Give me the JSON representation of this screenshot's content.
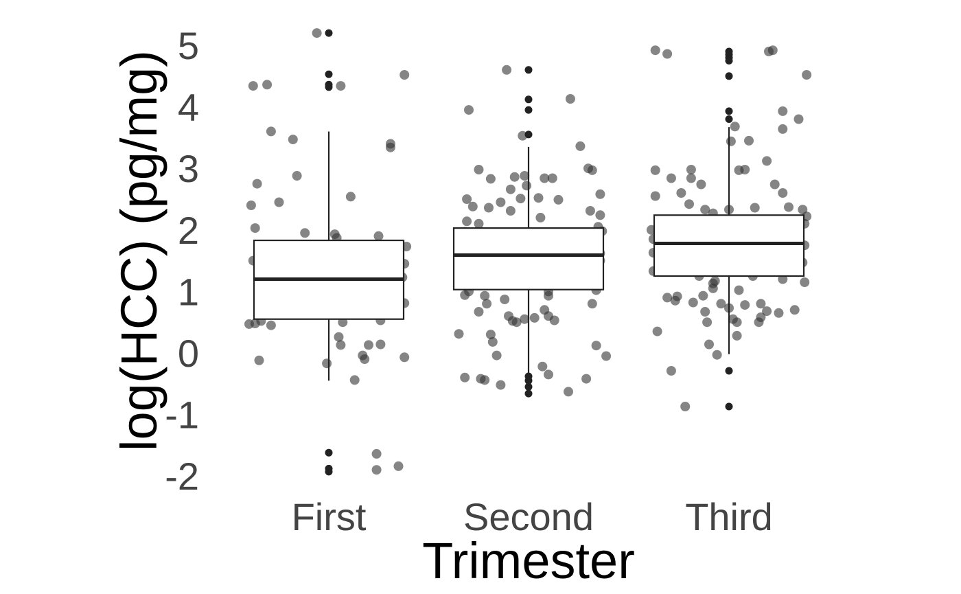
{
  "chart_data": {
    "type": "boxplot",
    "xlabel": "Trimester",
    "ylabel": "log(HCC) (pg/mg)",
    "categories": [
      "First",
      "Second",
      "Third"
    ],
    "yticks": [
      {
        "value": 5,
        "label": "5"
      },
      {
        "value": 4,
        "label": "4"
      },
      {
        "value": 3,
        "label": "3"
      },
      {
        "value": 2,
        "label": "2"
      },
      {
        "value": 1,
        "label": "1"
      },
      {
        "value": 0,
        "label": "0"
      },
      {
        "value": -1,
        "label": "-1"
      },
      {
        "value": -2,
        "label": "-2"
      }
    ],
    "ylim": [
      -2.3,
      5.35
    ],
    "grid": false,
    "colors": {
      "box_line": "#222222",
      "point": "#333333",
      "outlier": "#222222",
      "tick_text": "#444444",
      "title_text": "#000000"
    },
    "boxes": [
      {
        "category": "First",
        "q1": 0.55,
        "median": 1.2,
        "q3": 1.83,
        "whisker_low": -0.45,
        "whisker_high": 3.6,
        "outliers": [
          5.2,
          4.53,
          4.36,
          4.32,
          -1.62,
          -1.88,
          -1.93
        ]
      },
      {
        "category": "Second",
        "q1": 1.03,
        "median": 1.59,
        "q3": 2.03,
        "whisker_low": -0.4,
        "whisker_high": 3.35,
        "outliers": [
          4.6,
          4.12,
          3.95,
          3.55,
          -0.38,
          -0.45,
          -0.55,
          -0.66
        ]
      },
      {
        "category": "Third",
        "q1": 1.25,
        "median": 1.78,
        "q3": 2.24,
        "whisker_low": -0.02,
        "whisker_high": 3.67,
        "outliers": [
          4.9,
          4.85,
          4.8,
          4.75,
          4.5,
          3.93,
          3.8,
          -0.29,
          -0.87
        ]
      }
    ],
    "jitter_points": [
      {
        "category": "First",
        "x": -0.06,
        "y": 5.2
      },
      {
        "category": "First",
        "x": -0.38,
        "y": 4.34
      },
      {
        "category": "First",
        "x": -0.31,
        "y": 4.36
      },
      {
        "category": "First",
        "x": 0.06,
        "y": 4.34
      },
      {
        "category": "First",
        "x": 0.38,
        "y": 4.52
      },
      {
        "category": "First",
        "x": -0.29,
        "y": 3.6
      },
      {
        "category": "First",
        "x": -0.18,
        "y": 3.47
      },
      {
        "category": "First",
        "x": 0.31,
        "y": 3.4
      },
      {
        "category": "First",
        "x": 0.31,
        "y": 3.34
      },
      {
        "category": "First",
        "x": -0.36,
        "y": 2.75
      },
      {
        "category": "First",
        "x": -0.16,
        "y": 2.88
      },
      {
        "category": "First",
        "x": 0.11,
        "y": 2.54
      },
      {
        "category": "First",
        "x": -0.39,
        "y": 2.4
      },
      {
        "category": "First",
        "x": -0.25,
        "y": 2.45
      },
      {
        "category": "First",
        "x": -0.37,
        "y": 2.03
      },
      {
        "category": "First",
        "x": -0.12,
        "y": 1.95
      },
      {
        "category": "First",
        "x": 0.03,
        "y": 1.93
      },
      {
        "category": "First",
        "x": 0.04,
        "y": 1.87
      },
      {
        "category": "First",
        "x": 0.25,
        "y": 1.9
      },
      {
        "category": "First",
        "x": 0.39,
        "y": 1.73
      },
      {
        "category": "First",
        "x": -0.38,
        "y": 1.5
      },
      {
        "category": "First",
        "x": 0.38,
        "y": 1.45
      },
      {
        "category": "First",
        "x": 0.37,
        "y": 1.23
      },
      {
        "category": "First",
        "x": 0.38,
        "y": 0.81
      },
      {
        "category": "First",
        "x": -0.08,
        "y": 0.63
      },
      {
        "category": "First",
        "x": -0.4,
        "y": 0.47
      },
      {
        "category": "First",
        "x": -0.37,
        "y": 0.48
      },
      {
        "category": "First",
        "x": -0.34,
        "y": 0.52
      },
      {
        "category": "First",
        "x": -0.29,
        "y": 0.45
      },
      {
        "category": "First",
        "x": 0.07,
        "y": 0.5
      },
      {
        "category": "First",
        "x": 0.26,
        "y": 0.53
      },
      {
        "category": "First",
        "x": 0.05,
        "y": 0.26
      },
      {
        "category": "First",
        "x": 0.06,
        "y": 0.13
      },
      {
        "category": "First",
        "x": 0.2,
        "y": 0.13
      },
      {
        "category": "First",
        "x": 0.26,
        "y": 0.14
      },
      {
        "category": "First",
        "x": -0.35,
        "y": -0.12
      },
      {
        "category": "First",
        "x": -0.01,
        "y": -0.17
      },
      {
        "category": "First",
        "x": 0.18,
        "y": -0.1
      },
      {
        "category": "First",
        "x": 0.17,
        "y": -0.04
      },
      {
        "category": "First",
        "x": 0.38,
        "y": -0.07
      },
      {
        "category": "First",
        "x": 0.13,
        "y": -0.44
      },
      {
        "category": "First",
        "x": 0.24,
        "y": -1.64
      },
      {
        "category": "First",
        "x": 0.24,
        "y": -1.9
      },
      {
        "category": "First",
        "x": 0.35,
        "y": -1.84
      },
      {
        "category": "Second",
        "x": -0.11,
        "y": 4.6
      },
      {
        "category": "Second",
        "x": -0.3,
        "y": 3.95
      },
      {
        "category": "Second",
        "x": 0.21,
        "y": 4.13
      },
      {
        "category": "Second",
        "x": 0.12,
        "y": 2.84
      },
      {
        "category": "Second",
        "x": -0.03,
        "y": 3.53
      },
      {
        "category": "Second",
        "x": 0.26,
        "y": 3.36
      },
      {
        "category": "Second",
        "x": 0.3,
        "y": 3.0
      },
      {
        "category": "Second",
        "x": 0.32,
        "y": 2.97
      },
      {
        "category": "Second",
        "x": -0.25,
        "y": 2.98
      },
      {
        "category": "Second",
        "x": -0.19,
        "y": 2.83
      },
      {
        "category": "Second",
        "x": -0.07,
        "y": 2.86
      },
      {
        "category": "Second",
        "x": -0.02,
        "y": 2.88
      },
      {
        "category": "Second",
        "x": 0.08,
        "y": 2.84
      },
      {
        "category": "Second",
        "x": 0.36,
        "y": 2.58
      },
      {
        "category": "Second",
        "x": -0.31,
        "y": 2.5
      },
      {
        "category": "Second",
        "x": -0.28,
        "y": 2.38
      },
      {
        "category": "Second",
        "x": -0.2,
        "y": 2.36
      },
      {
        "category": "Second",
        "x": -0.14,
        "y": 2.45
      },
      {
        "category": "Second",
        "x": -0.09,
        "y": 2.66
      },
      {
        "category": "Second",
        "x": -0.01,
        "y": 2.72
      },
      {
        "category": "Second",
        "x": 0.05,
        "y": 2.52
      },
      {
        "category": "Second",
        "x": 0.15,
        "y": 2.49
      },
      {
        "category": "Second",
        "x": -0.09,
        "y": 2.31
      },
      {
        "category": "Second",
        "x": -0.04,
        "y": 2.51
      },
      {
        "category": "Second",
        "x": 0.31,
        "y": 2.31
      },
      {
        "category": "Second",
        "x": 0.36,
        "y": 2.24
      },
      {
        "category": "Second",
        "x": -0.31,
        "y": 2.14
      },
      {
        "category": "Second",
        "x": -0.25,
        "y": 2.1
      },
      {
        "category": "Second",
        "x": 0.06,
        "y": 2.2
      },
      {
        "category": "Second",
        "x": 0.35,
        "y": 2.05
      },
      {
        "category": "Second",
        "x": -0.32,
        "y": 1.97
      },
      {
        "category": "Second",
        "x": 0.37,
        "y": 1.98
      },
      {
        "category": "Second",
        "x": -0.34,
        "y": 1.7
      },
      {
        "category": "Second",
        "x": -0.32,
        "y": 1.65
      },
      {
        "category": "Second",
        "x": 0.36,
        "y": 1.62
      },
      {
        "category": "Second",
        "x": -0.34,
        "y": 1.38
      },
      {
        "category": "Second",
        "x": -0.35,
        "y": 1.2
      },
      {
        "category": "Second",
        "x": 0.36,
        "y": 1.5
      },
      {
        "category": "Second",
        "x": 0.35,
        "y": 1.38
      },
      {
        "category": "Second",
        "x": 0.35,
        "y": 1.22
      },
      {
        "category": "Second",
        "x": 0.34,
        "y": 1.02
      },
      {
        "category": "Second",
        "x": -0.32,
        "y": 0.94
      },
      {
        "category": "Second",
        "x": -0.3,
        "y": 1.0
      },
      {
        "category": "Second",
        "x": -0.22,
        "y": 0.93
      },
      {
        "category": "Second",
        "x": 0.1,
        "y": 1.0
      },
      {
        "category": "Second",
        "x": 0.1,
        "y": 0.93
      },
      {
        "category": "Second",
        "x": -0.12,
        "y": 0.87
      },
      {
        "category": "Second",
        "x": -0.21,
        "y": 0.8
      },
      {
        "category": "Second",
        "x": 0.32,
        "y": 0.8
      },
      {
        "category": "Second",
        "x": -0.25,
        "y": 0.67
      },
      {
        "category": "Second",
        "x": -0.1,
        "y": 0.6
      },
      {
        "category": "Second",
        "x": -0.08,
        "y": 0.52
      },
      {
        "category": "Second",
        "x": -0.06,
        "y": 0.5
      },
      {
        "category": "Second",
        "x": -0.02,
        "y": 0.55
      },
      {
        "category": "Second",
        "x": 0.03,
        "y": 0.57
      },
      {
        "category": "Second",
        "x": 0.08,
        "y": 0.7
      },
      {
        "category": "Second",
        "x": 0.1,
        "y": 0.6
      },
      {
        "category": "Second",
        "x": 0.13,
        "y": 0.53
      },
      {
        "category": "Second",
        "x": -0.35,
        "y": 0.31
      },
      {
        "category": "Second",
        "x": -0.19,
        "y": 0.3
      },
      {
        "category": "Second",
        "x": -0.18,
        "y": 0.18
      },
      {
        "category": "Second",
        "x": 0.34,
        "y": 0.12
      },
      {
        "category": "Second",
        "x": -0.16,
        "y": -0.04
      },
      {
        "category": "Second",
        "x": 0.39,
        "y": -0.05
      },
      {
        "category": "Second",
        "x": 0.07,
        "y": -0.22
      },
      {
        "category": "Second",
        "x": 0.1,
        "y": -0.35
      },
      {
        "category": "Second",
        "x": -0.32,
        "y": -0.4
      },
      {
        "category": "Second",
        "x": -0.24,
        "y": -0.42
      },
      {
        "category": "Second",
        "x": -0.22,
        "y": -0.44
      },
      {
        "category": "Second",
        "x": -0.14,
        "y": -0.52
      },
      {
        "category": "Second",
        "x": 0.29,
        "y": -0.42
      },
      {
        "category": "Second",
        "x": 0.2,
        "y": -0.63
      },
      {
        "category": "Third",
        "x": -0.37,
        "y": 4.92
      },
      {
        "category": "Third",
        "x": -0.31,
        "y": 4.86
      },
      {
        "category": "Third",
        "x": 0.22,
        "y": 4.92
      },
      {
        "category": "Third",
        "x": 0.2,
        "y": 4.9
      },
      {
        "category": "Third",
        "x": 0.39,
        "y": 4.52
      },
      {
        "category": "Third",
        "x": 0.27,
        "y": 3.93
      },
      {
        "category": "Third",
        "x": 0.35,
        "y": 3.8
      },
      {
        "category": "Third",
        "x": 0.03,
        "y": 3.68
      },
      {
        "category": "Third",
        "x": 0.27,
        "y": 3.64
      },
      {
        "category": "Third",
        "x": 0.01,
        "y": 3.44
      },
      {
        "category": "Third",
        "x": 0.1,
        "y": 3.45
      },
      {
        "category": "Third",
        "x": 0.19,
        "y": 3.12
      },
      {
        "category": "Third",
        "x": -0.37,
        "y": 2.97
      },
      {
        "category": "Third",
        "x": -0.19,
        "y": 2.98
      },
      {
        "category": "Third",
        "x": 0.05,
        "y": 2.97
      },
      {
        "category": "Third",
        "x": 0.08,
        "y": 2.98
      },
      {
        "category": "Third",
        "x": -0.29,
        "y": 2.84
      },
      {
        "category": "Third",
        "x": -0.19,
        "y": 2.84
      },
      {
        "category": "Third",
        "x": -0.14,
        "y": 2.74
      },
      {
        "category": "Third",
        "x": 0.23,
        "y": 2.74
      },
      {
        "category": "Third",
        "x": -0.24,
        "y": 2.6
      },
      {
        "category": "Third",
        "x": -0.37,
        "y": 2.55
      },
      {
        "category": "Third",
        "x": 0.27,
        "y": 2.6
      },
      {
        "category": "Third",
        "x": -0.2,
        "y": 2.42
      },
      {
        "category": "Third",
        "x": -0.12,
        "y": 2.33
      },
      {
        "category": "Third",
        "x": -0.08,
        "y": 2.27
      },
      {
        "category": "Third",
        "x": 0.0,
        "y": 2.33
      },
      {
        "category": "Third",
        "x": 0.13,
        "y": 2.36
      },
      {
        "category": "Third",
        "x": 0.3,
        "y": 2.37
      },
      {
        "category": "Third",
        "x": 0.37,
        "y": 2.33
      },
      {
        "category": "Third",
        "x": 0.39,
        "y": 2.22
      },
      {
        "category": "Third",
        "x": 0.38,
        "y": 2.1
      },
      {
        "category": "Third",
        "x": -0.39,
        "y": 2.0
      },
      {
        "category": "Third",
        "x": -0.38,
        "y": 1.85
      },
      {
        "category": "Third",
        "x": -0.38,
        "y": 1.63
      },
      {
        "category": "Third",
        "x": 0.38,
        "y": 1.75
      },
      {
        "category": "Third",
        "x": 0.37,
        "y": 1.47
      },
      {
        "category": "Third",
        "x": -0.38,
        "y": 1.33
      },
      {
        "category": "Third",
        "x": -0.15,
        "y": 1.25
      },
      {
        "category": "Third",
        "x": -0.08,
        "y": 1.13
      },
      {
        "category": "Third",
        "x": -0.07,
        "y": 1.17
      },
      {
        "category": "Third",
        "x": -0.08,
        "y": 1.05
      },
      {
        "category": "Third",
        "x": 0.12,
        "y": 1.25
      },
      {
        "category": "Third",
        "x": 0.27,
        "y": 1.2
      },
      {
        "category": "Third",
        "x": 0.38,
        "y": 1.15
      },
      {
        "category": "Third",
        "x": 0.05,
        "y": 1.02
      },
      {
        "category": "Third",
        "x": -0.26,
        "y": 0.92
      },
      {
        "category": "Third",
        "x": -0.13,
        "y": 0.93
      },
      {
        "category": "Third",
        "x": -0.31,
        "y": 0.9
      },
      {
        "category": "Third",
        "x": -0.27,
        "y": 0.85
      },
      {
        "category": "Third",
        "x": -0.18,
        "y": 0.82
      },
      {
        "category": "Third",
        "x": -0.04,
        "y": 0.8
      },
      {
        "category": "Third",
        "x": 0.0,
        "y": 0.73
      },
      {
        "category": "Third",
        "x": 0.08,
        "y": 0.78
      },
      {
        "category": "Third",
        "x": 0.16,
        "y": 0.8
      },
      {
        "category": "Third",
        "x": 0.19,
        "y": 0.68
      },
      {
        "category": "Third",
        "x": 0.25,
        "y": 0.65
      },
      {
        "category": "Third",
        "x": 0.33,
        "y": 0.7
      },
      {
        "category": "Third",
        "x": -0.12,
        "y": 0.67
      },
      {
        "category": "Third",
        "x": -0.11,
        "y": 0.5
      },
      {
        "category": "Third",
        "x": 0.02,
        "y": 0.55
      },
      {
        "category": "Third",
        "x": 0.04,
        "y": 0.5
      },
      {
        "category": "Third",
        "x": 0.15,
        "y": 0.5
      },
      {
        "category": "Third",
        "x": 0.16,
        "y": 0.58
      },
      {
        "category": "Third",
        "x": -0.36,
        "y": 0.35
      },
      {
        "category": "Third",
        "x": 0.04,
        "y": 0.28
      },
      {
        "category": "Third",
        "x": -0.1,
        "y": 0.14
      },
      {
        "category": "Third",
        "x": -0.06,
        "y": -0.03
      },
      {
        "category": "Third",
        "x": -0.29,
        "y": -0.29
      },
      {
        "category": "Third",
        "x": -0.22,
        "y": -0.87
      }
    ]
  }
}
